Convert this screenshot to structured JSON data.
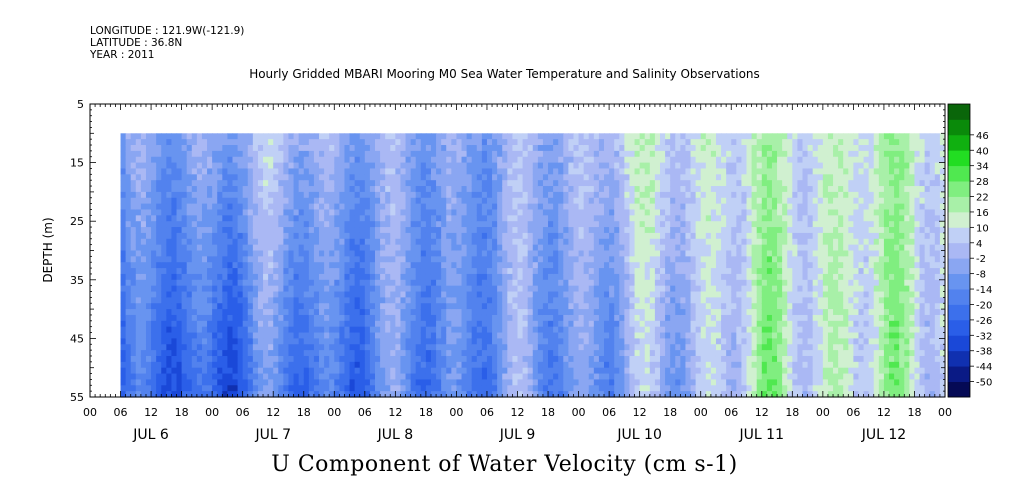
{
  "header": {
    "longitude": "LONGITUDE : 121.9W(-121.9)",
    "latitude": "LATITUDE : 36.8N",
    "year": "YEAR : 2011",
    "title": "Hourly Gridded MBARI Mooring M0 Sea Water Temperature and Salinity Observations"
  },
  "chart_data": {
    "type": "heatmap",
    "title": "U Component of Water Velocity (cm s-1)",
    "ylabel": "DEPTH (m)",
    "yticks": [
      5,
      15,
      25,
      35,
      45,
      55
    ],
    "ylim": [
      55,
      5
    ],
    "data_depth_range": [
      10,
      55
    ],
    "hour_ticks": [
      "00",
      "06",
      "12",
      "18",
      "00",
      "06",
      "12",
      "18",
      "00",
      "06",
      "12",
      "18",
      "00",
      "06",
      "12",
      "18",
      "00",
      "06",
      "12",
      "18",
      "00",
      "06",
      "12",
      "18",
      "00",
      "06",
      "12",
      "18",
      "00"
    ],
    "day_labels": [
      "JUL  6",
      "JUL  7",
      "JUL  8",
      "JUL  9",
      "JUL 10",
      "JUL 11",
      "JUL 12"
    ],
    "time_range": [
      "2011-07-06T00:00",
      "2011-07-13T00:00"
    ],
    "data_time_range": [
      "2011-07-06T06:00",
      "2011-07-13T00:00"
    ],
    "colorbar": {
      "levels": [
        -50,
        -44,
        -38,
        -32,
        -26,
        -20,
        -14,
        -8,
        -2,
        4,
        10,
        16,
        22,
        28,
        34,
        40,
        46
      ],
      "colors": [
        "#050a55",
        "#0a1a85",
        "#1030b0",
        "#1a48d8",
        "#2a5ee8",
        "#3c70ec",
        "#5282ee",
        "#6894f0",
        "#8aa6f2",
        "#aab8f4",
        "#c0d0f6",
        "#d0f0d0",
        "#a8f0a8",
        "#80ee80",
        "#50e850",
        "#22dd22",
        "#10b010",
        "#0a8a0a",
        "#0a660a"
      ]
    },
    "profiles": [
      {
        "day": "Jul 6",
        "u_shallow": -8,
        "u_deep": -30
      },
      {
        "day": "Jul 7",
        "u_shallow": 2,
        "u_deep": -22
      },
      {
        "day": "Jul 8",
        "u_shallow": -6,
        "u_deep": -18
      },
      {
        "day": "Jul 9",
        "u_shallow": -4,
        "u_deep": -12
      },
      {
        "day": "Jul 10",
        "u_shallow": 10,
        "u_deep": -8
      },
      {
        "day": "Jul 11",
        "u_shallow": 12,
        "u_deep": 14
      },
      {
        "day": "Jul 12",
        "u_shallow": 14,
        "u_deep": 12
      }
    ]
  }
}
